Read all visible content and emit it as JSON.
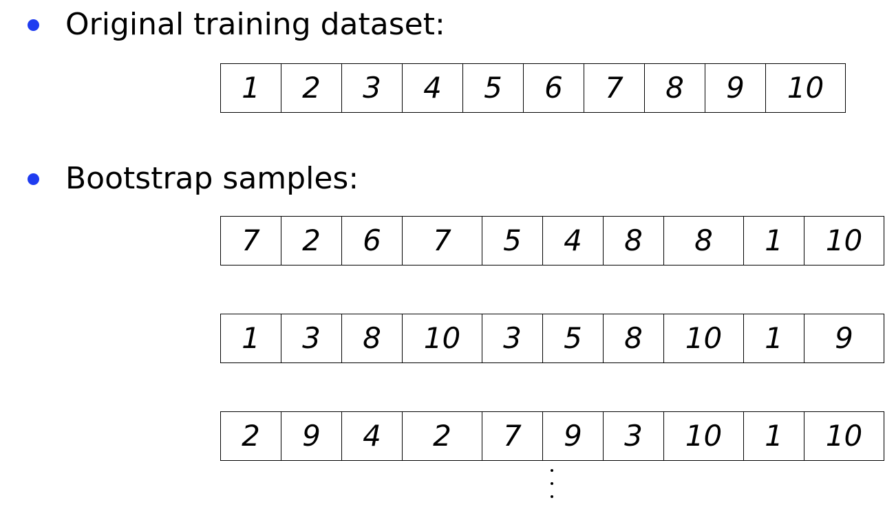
{
  "bullets": {
    "original": "Original training dataset:",
    "bootstrap": "Bootstrap samples:"
  },
  "original_dataset": [
    "1",
    "2",
    "3",
    "4",
    "5",
    "6",
    "7",
    "8",
    "9",
    "10"
  ],
  "bootstrap_samples": [
    [
      "7",
      "2",
      "6",
      "7",
      "5",
      "4",
      "8",
      "8",
      "1",
      "10"
    ],
    [
      "1",
      "3",
      "8",
      "10",
      "3",
      "5",
      "8",
      "10",
      "1",
      "9"
    ],
    [
      "2",
      "9",
      "4",
      "2",
      "7",
      "9",
      "3",
      "10",
      "1",
      "10"
    ]
  ],
  "colors": {
    "bullet": "#1f3cf0",
    "border": "#000000"
  }
}
